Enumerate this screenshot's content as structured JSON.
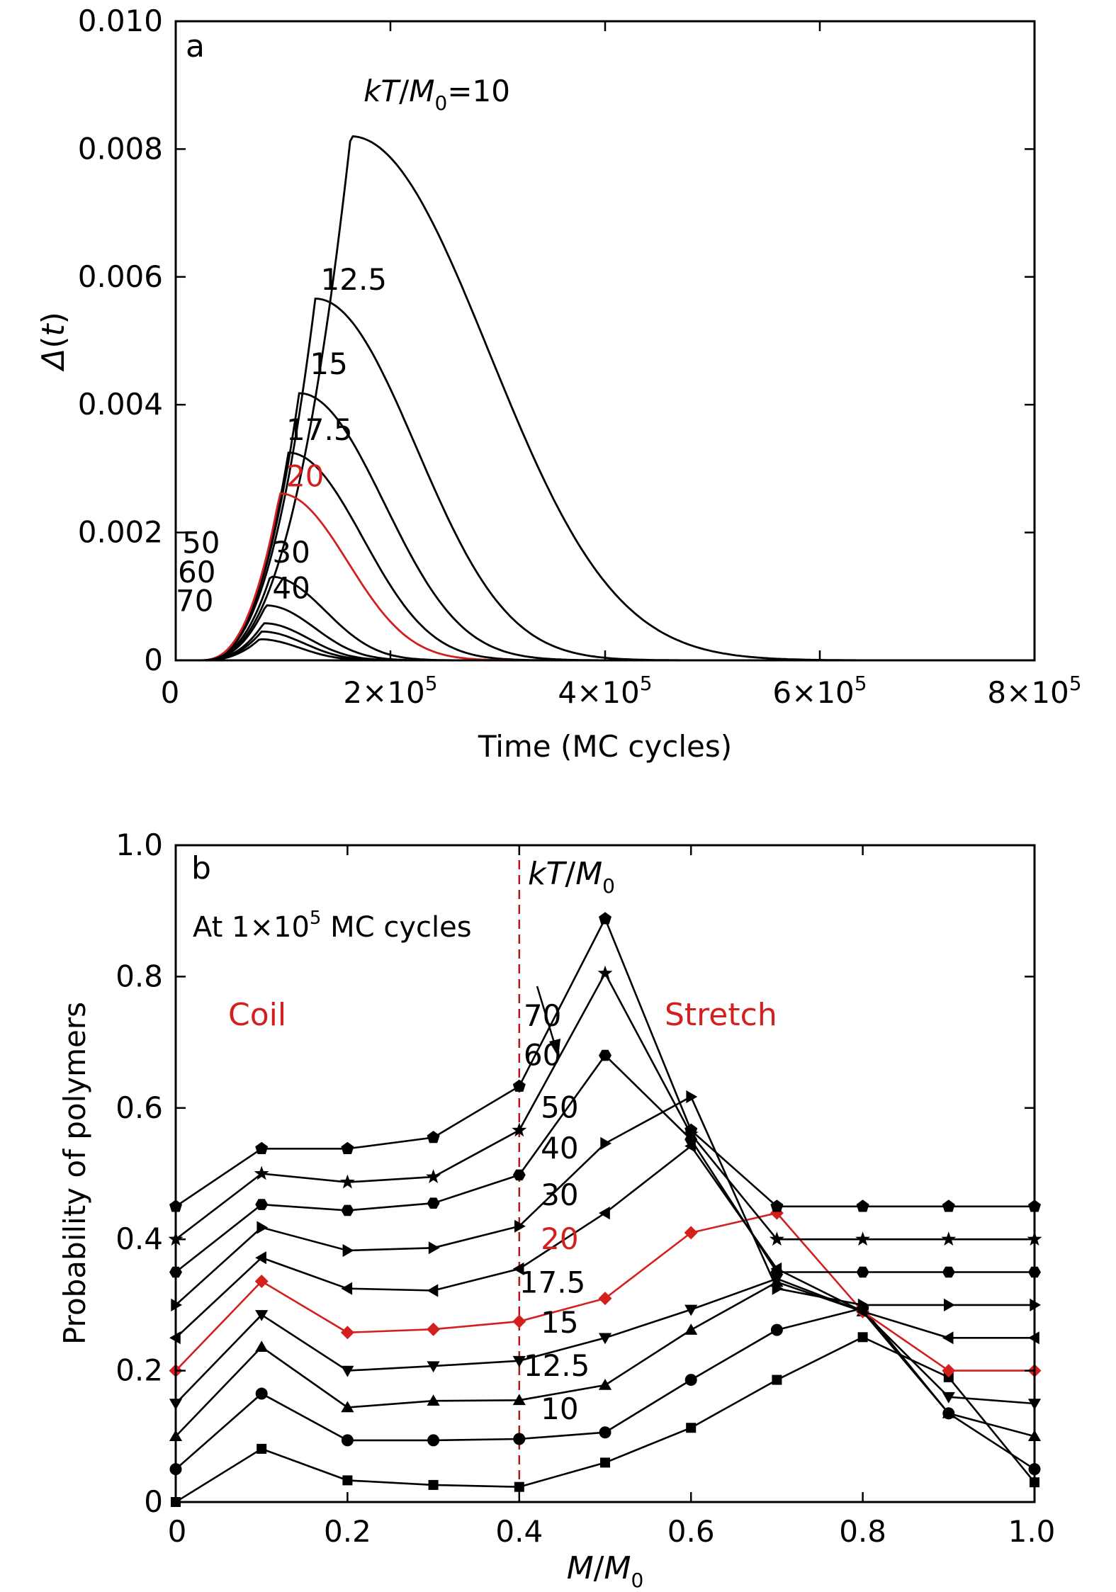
{
  "chart_data": [
    {
      "panel": "a",
      "type": "line",
      "panel_label": "a",
      "xlabel": "Time (MC cycles)",
      "ylabel": "Δ(t)",
      "xlim": [
        0,
        800000
      ],
      "ylim": [
        0,
        0.01
      ],
      "x_ticks": [
        0,
        200000,
        400000,
        600000,
        800000
      ],
      "x_tick_labels": [
        {
          "base": "0",
          "exp": ""
        },
        {
          "base": "2×10",
          "exp": "5"
        },
        {
          "base": "4×10",
          "exp": "5"
        },
        {
          "base": "6×10",
          "exp": "5"
        },
        {
          "base": "8×10",
          "exp": "5"
        }
      ],
      "y_ticks": [
        0,
        0.002,
        0.004,
        0.006,
        0.008,
        0.01
      ],
      "y_tick_labels": [
        "0",
        "0.002",
        "0.004",
        "0.006",
        "0.008",
        "0.010"
      ],
      "series_label_prefix": "kT/M0=",
      "series": [
        {
          "name": "10",
          "peak_x": 163000,
          "peak_y": 0.0082,
          "width": 130000,
          "color": "#000000"
        },
        {
          "name": "12.5",
          "peak_x": 130000,
          "peak_y": 0.00566,
          "width": 95000,
          "color": "#000000"
        },
        {
          "name": "15",
          "peak_x": 115000,
          "peak_y": 0.00418,
          "width": 80000,
          "color": "#000000"
        },
        {
          "name": "17.5",
          "peak_x": 105000,
          "peak_y": 0.00325,
          "width": 70000,
          "color": "#000000"
        },
        {
          "name": "20",
          "peak_x": 97000,
          "peak_y": 0.00261,
          "width": 64000,
          "color": "#d41f1f"
        },
        {
          "name": "30",
          "peak_x": 88000,
          "peak_y": 0.00131,
          "width": 52000,
          "color": "#000000"
        },
        {
          "name": "40",
          "peak_x": 84000,
          "peak_y": 0.00086,
          "width": 46000,
          "color": "#000000"
        },
        {
          "name": "50",
          "peak_x": 82000,
          "peak_y": 0.00058,
          "width": 42000,
          "color": "#000000"
        },
        {
          "name": "60",
          "peak_x": 80000,
          "peak_y": 0.00045,
          "width": 40000,
          "color": "#000000"
        },
        {
          "name": "70",
          "peak_x": 78000,
          "peak_y": 0.00033,
          "width": 38000,
          "color": "#000000"
        }
      ],
      "curve_labels": [
        {
          "text": "kT/M0=10",
          "x": 175000,
          "y": 0.00875
        },
        {
          "text": "12.5",
          "x": 135000,
          "y": 0.0058
        },
        {
          "text": "15",
          "x": 125000,
          "y": 0.00448
        },
        {
          "text": "17.5",
          "x": 103000,
          "y": 0.00345
        },
        {
          "text": "20",
          "x": 103000,
          "y": 0.00272
        },
        {
          "text": "30",
          "x": 90000,
          "y": 0.00153
        },
        {
          "text": "40",
          "x": 90000,
          "y": 0.00097
        },
        {
          "text": "50",
          "x": 6000,
          "y": 0.00168
        },
        {
          "text": "60",
          "x": 2000,
          "y": 0.00122
        },
        {
          "text": "70",
          "x": 0,
          "y": 0.00077
        }
      ]
    },
    {
      "panel": "b",
      "type": "line",
      "panel_label": "b",
      "annotation_prefix": "At 1×10",
      "annotation_exp": "5",
      "annotation_suffix": " MC cycles",
      "coil_label": "Coil",
      "stretch_label": "Stretch",
      "legend_title": "kT/M0",
      "xlabel": "M/M0",
      "ylabel": "Probability of polymers",
      "xlim": [
        0,
        1.0
      ],
      "ylim": [
        0,
        1.0
      ],
      "x_ticks": [
        0,
        0.2,
        0.4,
        0.6,
        0.8,
        1.0
      ],
      "x_tick_labels": [
        "0",
        "0.2",
        "0.4",
        "0.6",
        "0.8",
        "1.0"
      ],
      "y_ticks": [
        0,
        0.2,
        0.4,
        0.6,
        0.8,
        1.0
      ],
      "y_tick_labels": [
        "0",
        "0.2",
        "0.4",
        "0.6",
        "0.8",
        "1.0"
      ],
      "divider_x": 0.4,
      "x": [
        0,
        0.1,
        0.2,
        0.3,
        0.4,
        0.5,
        0.6,
        0.7,
        0.8,
        0.9,
        1.0
      ],
      "series": [
        {
          "name": "10",
          "marker": "square",
          "color": "#000000",
          "values": [
            0.0,
            0.081,
            0.033,
            0.026,
            0.023,
            0.06,
            0.113,
            0.186,
            0.251,
            0.19,
            0.03
          ]
        },
        {
          "name": "12.5",
          "marker": "circle",
          "color": "#000000",
          "values": [
            0.05,
            0.165,
            0.094,
            0.094,
            0.096,
            0.106,
            0.186,
            0.262,
            0.295,
            0.135,
            0.05
          ]
        },
        {
          "name": "15",
          "marker": "triangle-up",
          "color": "#000000",
          "values": [
            0.1,
            0.236,
            0.144,
            0.154,
            0.155,
            0.178,
            0.262,
            0.335,
            0.29,
            0.135,
            0.1
          ]
        },
        {
          "name": "17.5",
          "marker": "triangle-down",
          "color": "#000000",
          "values": [
            0.15,
            0.285,
            0.2,
            0.207,
            0.215,
            0.25,
            0.293,
            0.34,
            0.29,
            0.16,
            0.15
          ]
        },
        {
          "name": "20",
          "marker": "diamond",
          "color": "#d41f1f",
          "values": [
            0.2,
            0.336,
            0.258,
            0.263,
            0.275,
            0.31,
            0.41,
            0.44,
            0.29,
            0.2,
            0.2
          ]
        },
        {
          "name": "30",
          "marker": "triangle-left",
          "color": "#000000",
          "values": [
            0.25,
            0.372,
            0.325,
            0.322,
            0.355,
            0.44,
            0.542,
            0.355,
            0.29,
            0.25,
            0.25
          ]
        },
        {
          "name": "40",
          "marker": "triangle-right",
          "color": "#000000",
          "values": [
            0.3,
            0.418,
            0.383,
            0.387,
            0.42,
            0.546,
            0.617,
            0.325,
            0.3,
            0.3,
            0.3
          ]
        },
        {
          "name": "50",
          "marker": "hexagon",
          "color": "#000000",
          "values": [
            0.35,
            0.453,
            0.444,
            0.455,
            0.498,
            0.68,
            0.552,
            0.35,
            0.35,
            0.35,
            0.35
          ]
        },
        {
          "name": "60",
          "marker": "star",
          "color": "#000000",
          "values": [
            0.4,
            0.5,
            0.487,
            0.495,
            0.566,
            0.805,
            0.56,
            0.4,
            0.4,
            0.4,
            0.4
          ]
        },
        {
          "name": "70",
          "marker": "pentagon",
          "color": "#000000",
          "values": [
            0.45,
            0.538,
            0.538,
            0.555,
            0.633,
            0.888,
            0.566,
            0.45,
            0.45,
            0.45,
            0.45
          ]
        }
      ],
      "series_labels": [
        {
          "text": "70",
          "x": 0.405,
          "y": 0.725
        },
        {
          "text": "60",
          "x": 0.405,
          "y": 0.665
        },
        {
          "text": "50",
          "x": 0.425,
          "y": 0.585
        },
        {
          "text": "40",
          "x": 0.425,
          "y": 0.523
        },
        {
          "text": "30",
          "x": 0.425,
          "y": 0.452
        },
        {
          "text": "20",
          "x": 0.425,
          "y": 0.385
        },
        {
          "text": "17.5",
          "x": 0.4,
          "y": 0.319
        },
        {
          "text": "15",
          "x": 0.425,
          "y": 0.258
        },
        {
          "text": "12.5",
          "x": 0.405,
          "y": 0.192
        },
        {
          "text": "10",
          "x": 0.425,
          "y": 0.126
        }
      ]
    }
  ]
}
